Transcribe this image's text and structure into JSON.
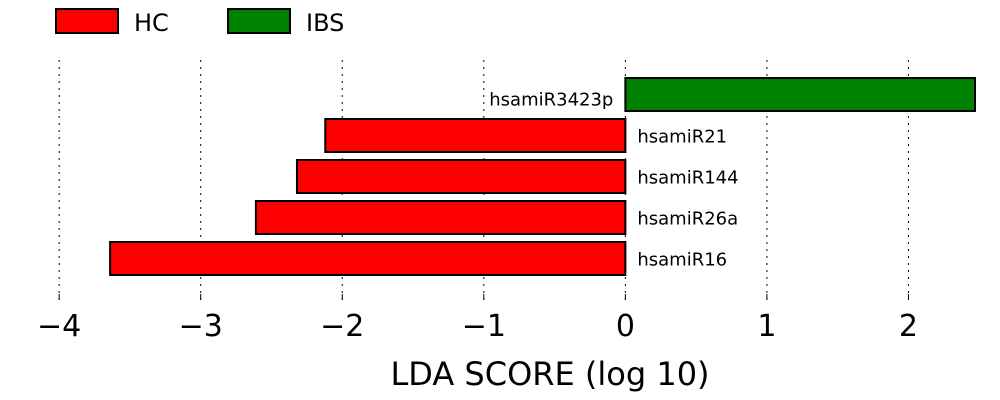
{
  "chart_data": {
    "type": "bar",
    "orientation": "horizontal",
    "xlabel": "LDA SCORE (log 10)",
    "xlim": [
      -4.1,
      2.47
    ],
    "xticks": [
      -4,
      -3,
      -2,
      -1,
      0,
      1,
      2
    ],
    "xtick_labels": [
      "−4",
      "−3",
      "−2",
      "−1",
      "0",
      "1",
      "2"
    ],
    "grid": "vertical dotted",
    "legend_position": "top-left",
    "legend": [
      {
        "label": "HC",
        "color": "#ff0000"
      },
      {
        "label": "IBS",
        "color": "#008000"
      }
    ],
    "bars": [
      {
        "category": "hsamiR3423p",
        "value": 2.47,
        "group": "IBS"
      },
      {
        "category": "hsamiR21",
        "value": -2.12,
        "group": "HC"
      },
      {
        "category": "hsamiR144",
        "value": -2.32,
        "group": "HC"
      },
      {
        "category": "hsamiR26a",
        "value": -2.61,
        "group": "HC"
      },
      {
        "category": "hsamiR16",
        "value": -3.64,
        "group": "HC"
      }
    ]
  }
}
